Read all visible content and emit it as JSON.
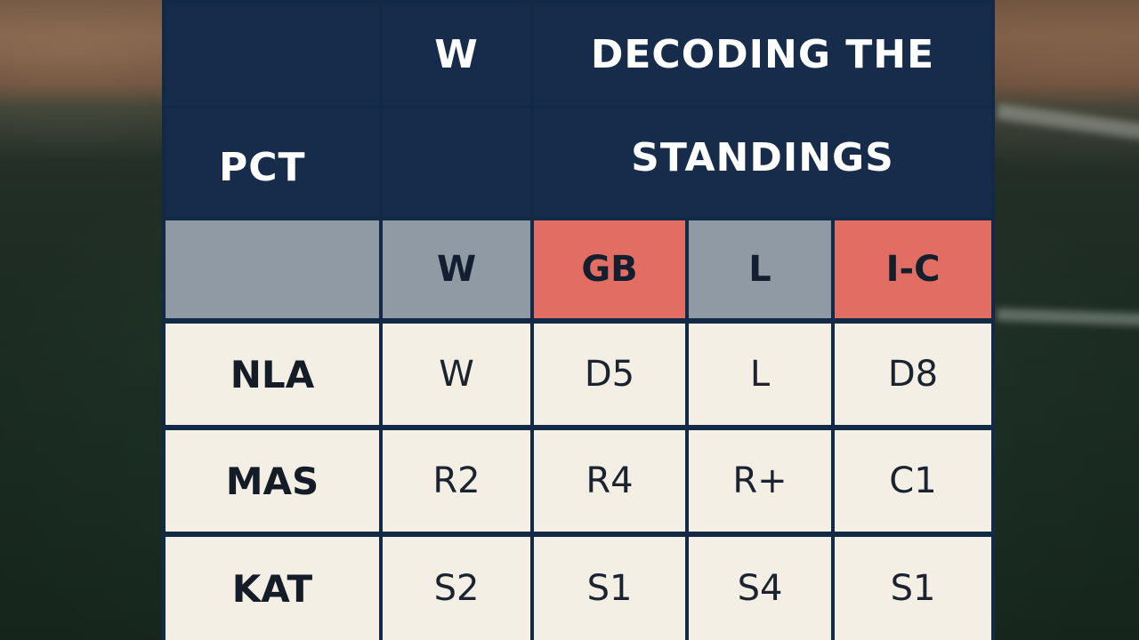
{
  "header": {
    "corner_top": "",
    "w_label": "W",
    "title_line1": "DECODING THE",
    "pct_label": "PCT",
    "title_line2": "STANDINGS"
  },
  "columns": [
    "",
    "W",
    "GB",
    "L",
    "I-C"
  ],
  "rows": [
    {
      "team": "NLA",
      "cells": [
        "W",
        "D5",
        "L",
        "D8"
      ]
    },
    {
      "team": "MAS",
      "cells": [
        "R2",
        "R4",
        "R+",
        "C1"
      ]
    },
    {
      "team": "KAT",
      "cells": [
        "S2",
        "S1",
        "S4",
        "S1"
      ]
    }
  ],
  "colors": {
    "navy": "#172c4a",
    "gray_header": "#8f9aa4",
    "red_header": "#e26e63",
    "cell_cream": "#f3efe4"
  }
}
